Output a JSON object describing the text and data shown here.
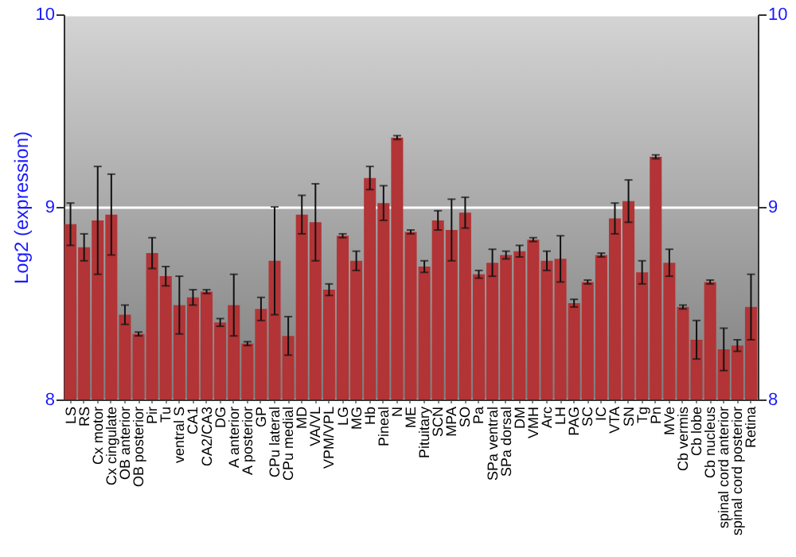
{
  "chart_data": {
    "type": "bar",
    "ylabel": "Log2 (expression)",
    "categories": [
      "LS",
      "RS",
      "Cx motor",
      "Cx cingulate",
      "OB anterior",
      "OB posterior",
      "Pir",
      "Tu",
      "ventral S",
      "CA1",
      "CA2/CA3",
      "DG",
      "A anterior",
      "A posterior",
      "GP",
      "CPu lateral",
      "CPu medial",
      "MD",
      "VA/VL",
      "VPM/VPL",
      "LG",
      "MG",
      "Hb",
      "Pineal",
      "N",
      "ME",
      "Pituitary",
      "SCN",
      "MPA",
      "SO",
      "Pa",
      "SPa ventral",
      "SPa dorsal",
      "DM",
      "VMH",
      "Arc",
      "LH",
      "PAG",
      "SC",
      "IC",
      "VTA",
      "SN",
      "Tg",
      "Pn",
      "MVe",
      "Cb vermis",
      "Cb lobe",
      "Cb nucleus",
      "spinal cord anterior",
      "spinal cord posterior",
      "Retina"
    ],
    "series": [
      {
        "color": "#b23436",
        "values": [
          8.91,
          8.79,
          8.93,
          8.96,
          8.44,
          8.34,
          8.76,
          8.64,
          8.49,
          8.53,
          8.56,
          8.4,
          8.49,
          8.29,
          8.47,
          8.72,
          8.33,
          8.96,
          8.92,
          8.57,
          8.85,
          8.72,
          9.15,
          9.02,
          9.36,
          8.87,
          8.69,
          8.93,
          8.88,
          8.97,
          8.65,
          8.71,
          8.75,
          8.77,
          8.83,
          8.72,
          8.73,
          8.5,
          8.61,
          8.75,
          8.94,
          9.03,
          8.66,
          9.26,
          8.71,
          8.48,
          8.31,
          8.61,
          8.26,
          8.28,
          8.48
        ],
        "errors": [
          0.11,
          0.07,
          0.28,
          0.21,
          0.05,
          0.01,
          0.08,
          0.05,
          0.15,
          0.04,
          0.01,
          0.02,
          0.16,
          0.01,
          0.06,
          0.28,
          0.1,
          0.1,
          0.2,
          0.03,
          0.01,
          0.05,
          0.06,
          0.09,
          0.01,
          0.01,
          0.03,
          0.05,
          0.16,
          0.08,
          0.02,
          0.07,
          0.02,
          0.03,
          0.01,
          0.05,
          0.12,
          0.02,
          0.01,
          0.01,
          0.08,
          0.11,
          0.06,
          0.01,
          0.07,
          0.01,
          0.1,
          0.01,
          0.11,
          0.03,
          0.17
        ]
      }
    ],
    "ylim": [
      8,
      10
    ],
    "yticks": [
      8,
      9,
      10
    ],
    "y2lim": [
      8,
      10
    ],
    "y2ticks": [
      8,
      9,
      10
    ],
    "grid": "y"
  }
}
